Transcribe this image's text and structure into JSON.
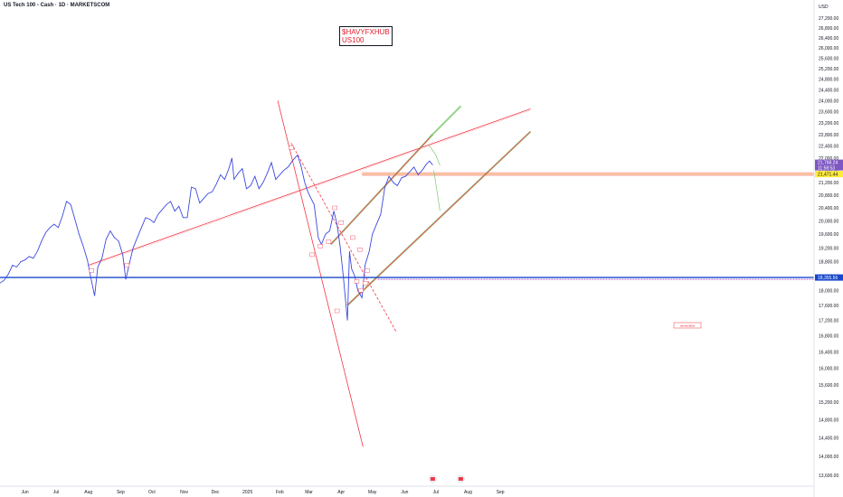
{
  "header": {
    "symbol_title": "US Tech 100 - Cash · 1D · MARKETSCOM",
    "currency": "USD"
  },
  "watermark": {
    "line1": "$HAVYFXHUB",
    "line2": "US100"
  },
  "price_tags": {
    "last_price": "21,768.24",
    "countdown": "11:58:53",
    "resistance": "21,471.44",
    "support": "18,355.56"
  },
  "zone_label": "demandflow",
  "colors": {
    "price_line": "#3b49df",
    "support_line": "#1848cc",
    "trend_red": "#f23645",
    "trend_green": "#7bc96f",
    "resistance_zone": "#f7a9a0",
    "zone_purple": "#a33cc9",
    "tag_purple": "#7e57c2",
    "tag_yellow": "#ffeb3b"
  },
  "chart_data": {
    "type": "line",
    "title": "US Tech 100 - Cash · 1D · MARKETSCOM",
    "xlabel": "",
    "ylabel": "",
    "ylim": [
      13600,
      27400
    ],
    "y_scale": "log",
    "grid": false,
    "y_ticks": [
      13600,
      14000,
      14400,
      14800,
      15200,
      15600,
      16000,
      16400,
      16800,
      17200,
      17600,
      18000,
      18400,
      18800,
      19200,
      19600,
      20000,
      20400,
      20800,
      21200,
      21600,
      22000,
      22400,
      22800,
      23200,
      23600,
      24000,
      24400,
      24800,
      25200,
      25600,
      26000,
      26400,
      26800,
      27200
    ],
    "y_tick_labels": [
      "13,600.00",
      "14,000.00",
      "14,400.00",
      "14,800.00",
      "15,200.00",
      "15,600.00",
      "16,000.00",
      "16,400.00",
      "16,800.00",
      "17,200.00",
      "17,600.00",
      "18,000.00",
      "18,400.00",
      "18,800.00",
      "19,200.00",
      "19,600.00",
      "20,000.00",
      "20,400.00",
      "20,800.00",
      "21,200.00",
      "21,600.00",
      "22,000.00",
      "22,400.00",
      "22,800.00",
      "23,200.00",
      "23,600.00",
      "24,000.00",
      "24,400.00",
      "24,800.00",
      "25,200.00",
      "25,600.00",
      "26,000.00",
      "26,400.00",
      "26,800.00",
      "27,200.00"
    ],
    "x_ticks": [
      "Jun",
      "Jul",
      "Aug",
      "Sep",
      "Oct",
      "Nov",
      "Dec",
      "2025",
      "Feb",
      "Mar",
      "Apr",
      "May",
      "Jun",
      "Jul",
      "Aug",
      "Sep"
    ],
    "x_tick_positions": [
      "2024-06-01",
      "2024-07-01",
      "2024-08-01",
      "2024-09-01",
      "2024-10-01",
      "2024-11-01",
      "2024-12-01",
      "2025-01-01",
      "2025-02-01",
      "2025-03-01",
      "2025-04-01",
      "2025-05-01",
      "2025-06-01",
      "2025-07-01",
      "2025-08-01",
      "2025-09-01"
    ],
    "series": [
      {
        "name": "",
        "points": [
          [
            "2024-05-08",
            18200
          ],
          [
            "2024-05-12",
            18280
          ],
          [
            "2024-05-16",
            18450
          ],
          [
            "2024-05-20",
            18700
          ],
          [
            "2024-05-24",
            18650
          ],
          [
            "2024-05-28",
            18800
          ],
          [
            "2024-06-01",
            18850
          ],
          [
            "2024-06-05",
            18950
          ],
          [
            "2024-06-09",
            18900
          ],
          [
            "2024-06-13",
            19100
          ],
          [
            "2024-06-17",
            19400
          ],
          [
            "2024-06-21",
            19650
          ],
          [
            "2024-06-25",
            19800
          ],
          [
            "2024-06-29",
            19900
          ],
          [
            "2024-07-03",
            19800
          ],
          [
            "2024-07-07",
            20150
          ],
          [
            "2024-07-11",
            20600
          ],
          [
            "2024-07-15",
            20500
          ],
          [
            "2024-07-19",
            20050
          ],
          [
            "2024-07-23",
            19600
          ],
          [
            "2024-07-27",
            19250
          ],
          [
            "2024-07-31",
            18850
          ],
          [
            "2024-08-03",
            18400
          ],
          [
            "2024-08-07",
            17850
          ],
          [
            "2024-08-10",
            18650
          ],
          [
            "2024-08-14",
            18900
          ],
          [
            "2024-08-18",
            19450
          ],
          [
            "2024-08-22",
            19700
          ],
          [
            "2024-08-26",
            19500
          ],
          [
            "2024-08-30",
            19400
          ],
          [
            "2024-09-03",
            19000
          ],
          [
            "2024-09-06",
            18300
          ],
          [
            "2024-09-09",
            18700
          ],
          [
            "2024-09-13",
            19200
          ],
          [
            "2024-09-17",
            19500
          ],
          [
            "2024-09-21",
            19800
          ],
          [
            "2024-09-25",
            20100
          ],
          [
            "2024-09-29",
            20050
          ],
          [
            "2024-10-03",
            19950
          ],
          [
            "2024-10-07",
            20200
          ],
          [
            "2024-10-11",
            20350
          ],
          [
            "2024-10-15",
            20500
          ],
          [
            "2024-10-19",
            20600
          ],
          [
            "2024-10-23",
            20300
          ],
          [
            "2024-10-27",
            20450
          ],
          [
            "2024-10-31",
            20100
          ],
          [
            "2024-11-04",
            20100
          ],
          [
            "2024-11-08",
            21050
          ],
          [
            "2024-11-12",
            21000
          ],
          [
            "2024-11-16",
            20550
          ],
          [
            "2024-11-20",
            20700
          ],
          [
            "2024-11-24",
            20850
          ],
          [
            "2024-11-28",
            20900
          ],
          [
            "2024-12-02",
            21150
          ],
          [
            "2024-12-06",
            21450
          ],
          [
            "2024-12-10",
            21300
          ],
          [
            "2024-12-14",
            21650
          ],
          [
            "2024-12-17",
            22000
          ],
          [
            "2024-12-19",
            21300
          ],
          [
            "2024-12-23",
            21500
          ],
          [
            "2024-12-27",
            21650
          ],
          [
            "2024-12-31",
            21000
          ],
          [
            "2025-01-04",
            21100
          ],
          [
            "2025-01-08",
            21400
          ],
          [
            "2025-01-12",
            21000
          ],
          [
            "2025-01-16",
            21200
          ],
          [
            "2025-01-20",
            21500
          ],
          [
            "2025-01-24",
            21850
          ],
          [
            "2025-01-28",
            21300
          ],
          [
            "2025-02-01",
            21450
          ],
          [
            "2025-02-05",
            21600
          ],
          [
            "2025-02-09",
            21700
          ],
          [
            "2025-02-13",
            21900
          ],
          [
            "2025-02-18",
            22100
          ],
          [
            "2025-02-21",
            21800
          ],
          [
            "2025-02-25",
            21200
          ],
          [
            "2025-02-28",
            20900
          ],
          [
            "2025-03-03",
            20700
          ],
          [
            "2025-03-06",
            20500
          ],
          [
            "2025-03-10",
            19500
          ],
          [
            "2025-03-13",
            19300
          ],
          [
            "2025-03-17",
            19600
          ],
          [
            "2025-03-21",
            19700
          ],
          [
            "2025-03-25",
            20300
          ],
          [
            "2025-03-28",
            19900
          ],
          [
            "2025-03-31",
            19250
          ],
          [
            "2025-04-03",
            18400
          ],
          [
            "2025-04-07",
            17200
          ],
          [
            "2025-04-09",
            19100
          ],
          [
            "2025-04-11",
            18600
          ],
          [
            "2025-04-14",
            18400
          ],
          [
            "2025-04-17",
            18000
          ],
          [
            "2025-04-21",
            17800
          ],
          [
            "2025-04-24",
            18700
          ],
          [
            "2025-04-28",
            19100
          ],
          [
            "2025-05-01",
            19600
          ],
          [
            "2025-05-05",
            19900
          ],
          [
            "2025-05-09",
            20200
          ],
          [
            "2025-05-13",
            21050
          ],
          [
            "2025-05-17",
            21400
          ],
          [
            "2025-05-21",
            21200
          ],
          [
            "2025-05-25",
            21100
          ],
          [
            "2025-05-29",
            21350
          ],
          [
            "2025-06-02",
            21400
          ],
          [
            "2025-06-06",
            21550
          ],
          [
            "2025-06-10",
            21700
          ],
          [
            "2025-06-14",
            21450
          ],
          [
            "2025-06-18",
            21600
          ],
          [
            "2025-06-22",
            21800
          ],
          [
            "2025-06-25",
            21900
          ],
          [
            "2025-06-28",
            21768
          ]
        ]
      }
    ],
    "horizontal_levels": [
      {
        "price": 18355.56,
        "label": "18,355.56",
        "style": "solid-blue"
      },
      {
        "price": 21471.44,
        "label": "21,471.44",
        "style": "red-zone"
      }
    ],
    "trendlines": [
      {
        "from": [
          "2024-08-01",
          18700
        ],
        "to": [
          "2025-09-30",
          23700
        ],
        "color": "red"
      },
      {
        "from": [
          "2025-01-30",
          24000
        ],
        "to": [
          "2025-04-22",
          14200
        ],
        "color": "red"
      },
      {
        "from": [
          "2025-02-12",
          22500
        ],
        "to": [
          "2025-05-24",
          16900
        ],
        "color": "red-dashed"
      },
      {
        "from": [
          "2025-03-22",
          19300
        ],
        "to": [
          "2025-06-28",
          22800
        ],
        "color": "red-green"
      },
      {
        "from": [
          "2025-04-07",
          17600
        ],
        "to": [
          "2025-09-30",
          22900
        ],
        "color": "red-green"
      },
      {
        "from": [
          "2025-06-25",
          22700
        ],
        "to": [
          "2025-07-25",
          23800
        ],
        "color": "green"
      }
    ]
  }
}
